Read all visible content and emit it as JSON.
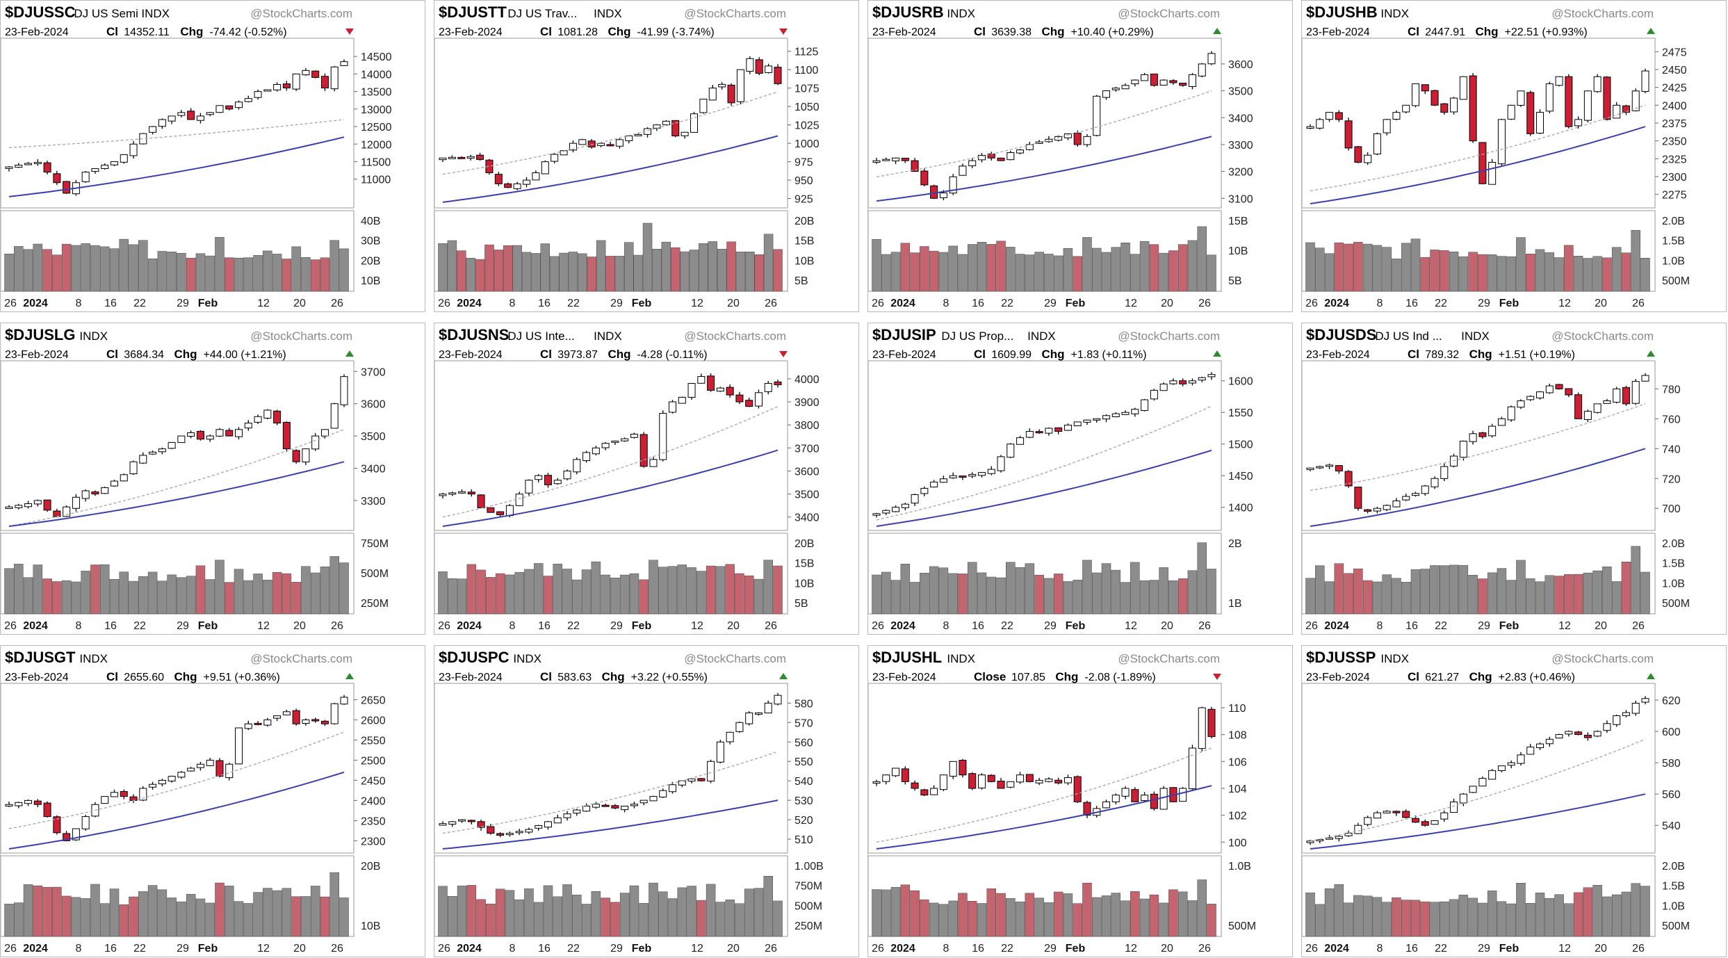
{
  "chart_data": [
    {
      "type": "candlestick",
      "symbol": "$DJUSSC",
      "name": "DJ US Semi",
      "exchange": "INDX",
      "source": "@StockCharts.com",
      "date": "23-Feb-2024",
      "close_label": "Cl",
      "close": "14352.11",
      "change_label": "Chg",
      "change": "-74.42 (-0.52%)",
      "direction": "down",
      "price_ticks": [
        "14500",
        "14000",
        "13500",
        "13000",
        "12500",
        "12000",
        "11500",
        "11000"
      ],
      "ylim": [
        10300,
        14900
      ],
      "volume_ticks": [
        "40B",
        "30B",
        "20B",
        "10B"
      ],
      "vol_max": 45,
      "ma20": [
        11900,
        12700
      ],
      "ma50": [
        10500,
        12200
      ],
      "close_path": [
        11350,
        11400,
        11450,
        11480,
        11200,
        10900,
        10600,
        10900,
        11200,
        11300,
        11400,
        11500,
        11700,
        12000,
        12300,
        12500,
        12700,
        12800,
        12900,
        12700,
        12800,
        12900,
        13100,
        13000,
        13200,
        13300,
        13500,
        13550,
        13700,
        13600,
        14000,
        14100,
        13900,
        13600,
        14200,
        14352
      ]
    },
    {
      "type": "candlestick",
      "symbol": "$DJUSTT",
      "name": "DJ US Trav...",
      "exchange": "INDX",
      "source": "@StockCharts.com",
      "date": "23-Feb-2024",
      "close_label": "Cl",
      "close": "1081.28",
      "change_label": "Chg",
      "change": "-41.99 (-3.74%)",
      "direction": "down",
      "price_ticks": [
        "1125",
        "1100",
        "1075",
        "1050",
        "1025",
        "1000",
        "975",
        "950",
        "925"
      ],
      "ylim": [
        918,
        1137
      ],
      "volume_ticks": [
        "20B",
        "15B",
        "10B",
        "5B"
      ],
      "vol_max": 22,
      "ma20": [
        958,
        1070
      ],
      "ma50": [
        920,
        1010
      ],
      "close_path": [
        980,
        981,
        980,
        982,
        978,
        960,
        945,
        940,
        945,
        950,
        960,
        975,
        985,
        990,
        1000,
        1005,
        995,
        1000,
        998,
        1005,
        1010,
        1012,
        1020,
        1025,
        1030,
        1010,
        1015,
        1040,
        1060,
        1075,
        1080,
        1055,
        1100,
        1115,
        1095,
        1105,
        1081
      ]
    },
    {
      "type": "candlestick",
      "symbol": "$DJUSRB",
      "name": "",
      "exchange": "INDX",
      "source": "@StockCharts.com",
      "date": "23-Feb-2024",
      "close_label": "Cl",
      "close": "3639.38",
      "change_label": "Chg",
      "change": "+10.40 (+0.29%)",
      "direction": "up",
      "price_ticks": [
        "3600",
        "3500",
        "3400",
        "3300",
        "3200",
        "3100"
      ],
      "ylim": [
        3080,
        3680
      ],
      "volume_ticks": [
        "15B",
        "10B",
        "5B"
      ],
      "vol_max": 18,
      "ma20": [
        3180,
        3500
      ],
      "ma50": [
        3090,
        3330
      ],
      "close_path": [
        3240,
        3245,
        3250,
        3240,
        3200,
        3150,
        3100,
        3120,
        3180,
        3220,
        3240,
        3260,
        3250,
        3240,
        3270,
        3280,
        3300,
        3310,
        3320,
        3330,
        3340,
        3300,
        3330,
        3480,
        3500,
        3510,
        3520,
        3540,
        3560,
        3520,
        3540,
        3530,
        3520,
        3560,
        3600,
        3639
      ]
    },
    {
      "type": "candlestick",
      "symbol": "$DJUSHB",
      "name": "",
      "exchange": "INDX",
      "source": "@StockCharts.com",
      "date": "23-Feb-2024",
      "close_label": "Cl",
      "close": "2447.91",
      "change_label": "Chg",
      "change": "+22.51 (+0.93%)",
      "direction": "up",
      "price_ticks": [
        "2475",
        "2450",
        "2425",
        "2400",
        "2375",
        "2350",
        "2325",
        "2300",
        "2275"
      ],
      "ylim": [
        2262,
        2488
      ],
      "volume_ticks": [
        "2.0B",
        "1.5B",
        "1.0B",
        "500M"
      ],
      "vol_max": 2.2,
      "ma20": [
        2280,
        2400
      ],
      "ma50": [
        2262,
        2370
      ],
      "close_path": [
        2370,
        2380,
        2390,
        2380,
        2340,
        2320,
        2330,
        2360,
        2380,
        2390,
        2400,
        2430,
        2420,
        2400,
        2390,
        2410,
        2440,
        2350,
        2290,
        2320,
        2380,
        2400,
        2420,
        2360,
        2390,
        2430,
        2440,
        2370,
        2380,
        2420,
        2440,
        2380,
        2400,
        2390,
        2420,
        2448
      ]
    },
    {
      "type": "candlestick",
      "symbol": "$DJUSLG",
      "name": "",
      "exchange": "INDX",
      "source": "@StockCharts.com",
      "date": "23-Feb-2024",
      "close_label": "Cl",
      "close": "3684.34",
      "change_label": "Chg",
      "change": "+44.00 (+1.21%)",
      "direction": "up",
      "price_ticks": [
        "3700",
        "3600",
        "3500",
        "3400",
        "3300"
      ],
      "ylim": [
        3220,
        3720
      ],
      "volume_ticks": [
        "750M",
        "500M",
        "250M"
      ],
      "vol_max": 820,
      "ma20": [
        3220,
        3520
      ],
      "ma50": [
        3220,
        3420
      ],
      "close_path": [
        3280,
        3285,
        3290,
        3300,
        3270,
        3250,
        3280,
        3310,
        3330,
        3320,
        3340,
        3360,
        3380,
        3420,
        3440,
        3450,
        3460,
        3480,
        3500,
        3510,
        3490,
        3500,
        3520,
        3500,
        3520,
        3540,
        3560,
        3580,
        3540,
        3460,
        3420,
        3460,
        3500,
        3520,
        3600,
        3684
      ]
    },
    {
      "type": "candlestick",
      "symbol": "$DJUSNS",
      "name": "DJ US Inte...",
      "exchange": "INDX",
      "source": "@StockCharts.com",
      "date": "23-Feb-2024",
      "close_label": "Cl",
      "close": "3973.87",
      "change_label": "Chg",
      "change": "-4.28 (-0.11%)",
      "direction": "down",
      "price_ticks": [
        "4000",
        "3900",
        "3800",
        "3700",
        "3600",
        "3500",
        "3400"
      ],
      "ylim": [
        3360,
        4060
      ],
      "volume_ticks": [
        "20B",
        "15B",
        "10B",
        "5B"
      ],
      "vol_max": 22,
      "ma20": [
        3400,
        3880
      ],
      "ma50": [
        3360,
        3690
      ],
      "close_path": [
        3500,
        3505,
        3510,
        3500,
        3440,
        3420,
        3410,
        3450,
        3500,
        3560,
        3580,
        3540,
        3560,
        3600,
        3650,
        3680,
        3700,
        3720,
        3730,
        3740,
        3760,
        3620,
        3650,
        3850,
        3900,
        3920,
        3980,
        4010,
        3950,
        3960,
        3930,
        3900,
        3880,
        3940,
        3980,
        3974
      ]
    },
    {
      "type": "candlestick",
      "symbol": "$DJUSIP",
      "name": "DJ US Prop...",
      "exchange": "INDX",
      "source": "@StockCharts.com",
      "date": "23-Feb-2024",
      "close_label": "Cl",
      "close": "1609.99",
      "change_label": "Chg",
      "change": "+1.83 (+0.11%)",
      "direction": "up",
      "price_ticks": [
        "1600",
        "1550",
        "1500",
        "1450",
        "1400"
      ],
      "ylim": [
        1370,
        1625
      ],
      "volume_ticks": [
        "2B",
        "1B"
      ],
      "vol_max": 2.8,
      "ma20": [
        1380,
        1560
      ],
      "ma50": [
        1370,
        1490
      ],
      "close_path": [
        1390,
        1395,
        1400,
        1405,
        1420,
        1430,
        1440,
        1445,
        1450,
        1448,
        1452,
        1455,
        1460,
        1480,
        1500,
        1510,
        1520,
        1518,
        1525,
        1520,
        1530,
        1535,
        1538,
        1540,
        1545,
        1548,
        1550,
        1555,
        1570,
        1585,
        1595,
        1600,
        1595,
        1600,
        1605,
        1610
      ]
    },
    {
      "type": "candlestick",
      "symbol": "$DJUSDS",
      "name": "DJ US Ind ...",
      "exchange": "INDX",
      "source": "@StockCharts.com",
      "date": "23-Feb-2024",
      "close_label": "Cl",
      "close": "789.32",
      "change_label": "Chg",
      "change": "+1.51 (+0.19%)",
      "direction": "up",
      "price_ticks": [
        "780",
        "760",
        "740",
        "720",
        "700"
      ],
      "ylim": [
        688,
        796
      ],
      "volume_ticks": [
        "2.0B",
        "1.5B",
        "1.0B",
        "500M"
      ],
      "vol_max": 2.2,
      "ma20": [
        712,
        770
      ],
      "ma50": [
        688,
        740
      ],
      "close_path": [
        727,
        728,
        729,
        725,
        715,
        700,
        698,
        700,
        702,
        705,
        708,
        710,
        715,
        720,
        728,
        735,
        745,
        750,
        748,
        755,
        760,
        768,
        772,
        775,
        778,
        782,
        780,
        776,
        760,
        765,
        770,
        772,
        780,
        770,
        785,
        789
      ]
    },
    {
      "type": "candlestick",
      "symbol": "$DJUSGT",
      "name": "",
      "exchange": "INDX",
      "source": "@StockCharts.com",
      "date": "23-Feb-2024",
      "close_label": "Cl",
      "close": "2655.60",
      "change_label": "Chg",
      "change": "+9.51 (+0.36%)",
      "direction": "up",
      "price_ticks": [
        "2650",
        "2600",
        "2550",
        "2500",
        "2450",
        "2400",
        "2350",
        "2300"
      ],
      "ylim": [
        2280,
        2680
      ],
      "volume_ticks": [
        "20B",
        "10B"
      ],
      "vol_max": 24,
      "ma20": [
        2330,
        2570
      ],
      "ma50": [
        2280,
        2470
      ],
      "close_path": [
        2390,
        2395,
        2400,
        2390,
        2360,
        2320,
        2300,
        2330,
        2360,
        2390,
        2410,
        2420,
        2410,
        2400,
        2430,
        2440,
        2450,
        2460,
        2470,
        2480,
        2490,
        2500,
        2460,
        2490,
        2580,
        2590,
        2590,
        2600,
        2610,
        2620,
        2590,
        2600,
        2600,
        2590,
        2640,
        2656
      ]
    },
    {
      "type": "candlestick",
      "symbol": "$DJUSPC",
      "name": "",
      "exchange": "INDX",
      "source": "@StockCharts.com",
      "date": "23-Feb-2024",
      "close_label": "Cl",
      "close": "583.63",
      "change_label": "Chg",
      "change": "+3.22 (+0.55%)",
      "direction": "up",
      "price_ticks": [
        "580",
        "570",
        "560",
        "550",
        "540",
        "530",
        "520",
        "510"
      ],
      "ylim": [
        505,
        588
      ],
      "volume_ticks": [
        "1.00B",
        "750M",
        "500M",
        "250M"
      ],
      "vol_max": 1.05,
      "ma20": [
        513,
        555
      ],
      "ma50": [
        505,
        530
      ],
      "close_path": [
        518,
        519,
        520,
        519,
        516,
        513,
        512,
        513,
        514,
        515,
        517,
        519,
        521,
        523,
        525,
        527,
        528,
        527,
        526,
        527,
        528,
        530,
        532,
        535,
        538,
        540,
        541,
        540,
        550,
        560,
        565,
        570,
        575,
        575,
        580,
        584
      ]
    },
    {
      "type": "candlestick",
      "symbol": "$DJUSHL",
      "name": "",
      "exchange": "INDX",
      "source": "@StockCharts.com",
      "date": "23-Feb-2024",
      "close_label": "Close",
      "close": "107.85",
      "change_label": "Chg",
      "change": "-2.08 (-1.89%)",
      "direction": "down",
      "price_ticks": [
        "110",
        "108",
        "106",
        "104",
        "102",
        "100"
      ],
      "ylim": [
        99.5,
        111.5
      ],
      "volume_ticks": [
        "1.0B",
        "500M"
      ],
      "vol_max": 1.25,
      "ma20": [
        100,
        107
      ],
      "ma50": [
        99.5,
        104.2
      ],
      "close_path": [
        104.5,
        105,
        105.5,
        104.5,
        104,
        103.5,
        104,
        105,
        106,
        105,
        104,
        105,
        104.5,
        104,
        104.5,
        105,
        104.5,
        104.6,
        104.7,
        104.4,
        104.8,
        103,
        102,
        102.5,
        103,
        103.5,
        104,
        103,
        103.5,
        102.5,
        104,
        103,
        104,
        107,
        110,
        107.85
      ]
    },
    {
      "type": "candlestick",
      "symbol": "$DJUSSP",
      "name": "",
      "exchange": "INDX",
      "source": "@StockCharts.com",
      "date": "23-Feb-2024",
      "close_label": "Cl",
      "close": "621.27",
      "change_label": "Chg",
      "change": "+2.83 (+0.46%)",
      "direction": "up",
      "price_ticks": [
        "620",
        "600",
        "580",
        "560",
        "540"
      ],
      "ylim": [
        525,
        628
      ],
      "volume_ticks": [
        "2.0B",
        "1.5B",
        "1.0B",
        "500M"
      ],
      "vol_max": 2.2,
      "ma20": [
        530,
        595
      ],
      "ma50": [
        525,
        560
      ],
      "close_path": [
        530,
        531,
        532,
        533,
        535,
        540,
        545,
        548,
        549,
        548,
        545,
        542,
        540,
        543,
        548,
        555,
        560,
        565,
        570,
        575,
        578,
        580,
        585,
        590,
        592,
        595,
        598,
        600,
        598,
        596,
        600,
        605,
        610,
        612,
        618,
        621
      ]
    }
  ],
  "x_labels": [
    "26",
    "2024",
    "8",
    "16",
    "22",
    "29",
    "Feb",
    "12",
    "20",
    "26"
  ],
  "colors": {
    "up_fill": "#ffffff",
    "down_fill": "#cc1f33",
    "candle_edge": "#000000",
    "ma50": "#3a3fb0",
    "ma20": "#aaaaaa",
    "vol_up": "#8c8c8c",
    "vol_down": "#c4646e",
    "up_arrow": "#2e8b2e",
    "down_arrow": "#cc1f33"
  }
}
